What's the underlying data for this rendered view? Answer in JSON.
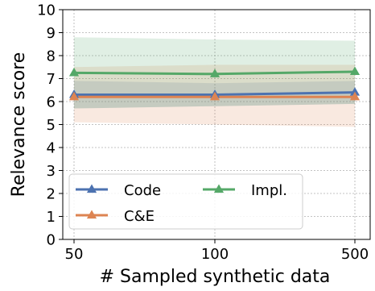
{
  "chart_data": {
    "type": "line",
    "title": "",
    "xlabel": "# Sampled synthetic data",
    "ylabel": "Relevance score",
    "categories": [
      "50",
      "100",
      "500"
    ],
    "ylim": [
      0,
      10
    ],
    "yticks": [
      "0",
      "1",
      "2",
      "3",
      "4",
      "5",
      "6",
      "7",
      "8",
      "9",
      "10"
    ],
    "grid": true,
    "legend_position": "lower-left",
    "series": [
      {
        "name": "Code",
        "color": "#4c72b0",
        "marker": "triangle",
        "values": [
          6.3,
          6.3,
          6.4
        ],
        "band_low": [
          5.7,
          5.8,
          5.9
        ],
        "band_high": [
          6.9,
          6.8,
          6.9
        ]
      },
      {
        "name": "C&E",
        "color": "#dd8452",
        "marker": "triangle",
        "values": [
          6.2,
          6.2,
          6.2
        ],
        "band_low": [
          5.1,
          5.0,
          4.9
        ],
        "band_high": [
          7.5,
          7.6,
          7.6
        ]
      },
      {
        "name": "Impl.",
        "color": "#55a868",
        "marker": "triangle",
        "values": [
          7.25,
          7.2,
          7.3
        ],
        "band_low": [
          5.7,
          5.8,
          5.9
        ],
        "band_high": [
          8.8,
          8.7,
          8.65
        ]
      }
    ]
  }
}
